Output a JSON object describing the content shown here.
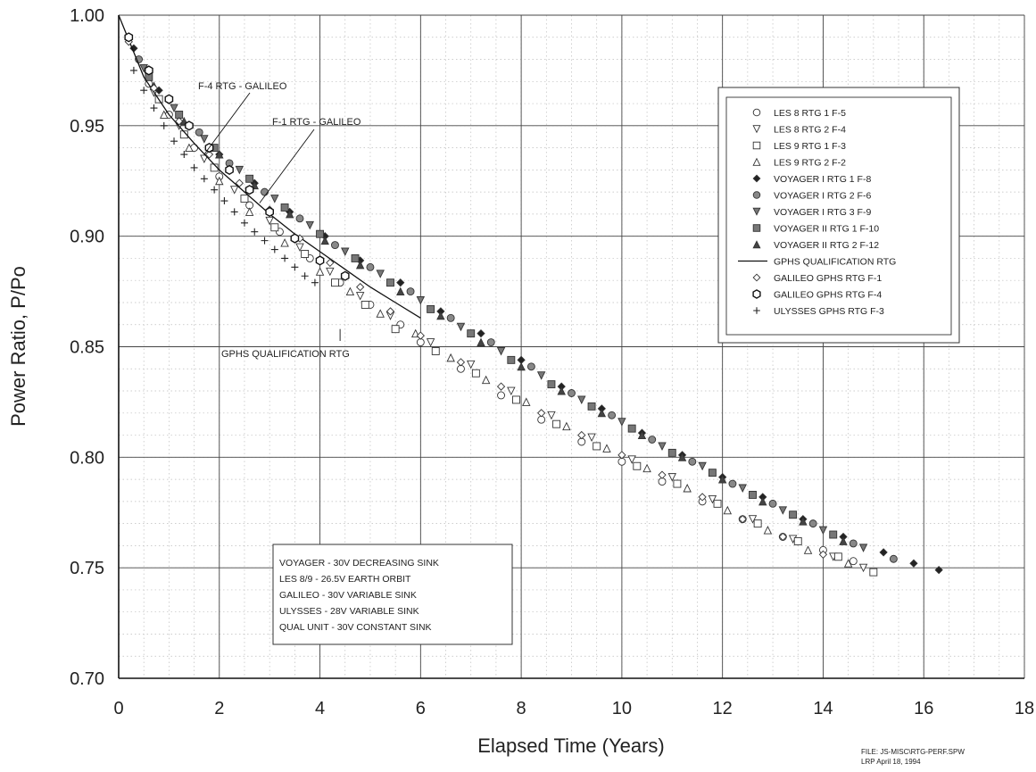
{
  "chart_data": {
    "type": "scatter",
    "xlabel": "Elapsed Time (Years)",
    "ylabel": "Power Ratio, P/Po",
    "xlim": [
      0,
      18
    ],
    "ylim": [
      0.7,
      1.0
    ],
    "xticks": [
      "0",
      "2",
      "4",
      "6",
      "8",
      "10",
      "12",
      "14",
      "16",
      "18"
    ],
    "yticks": [
      "0.70",
      "0.75",
      "0.80",
      "0.85",
      "0.90",
      "0.95",
      "1.00"
    ],
    "grid": "major solid, minor dotted",
    "legend_position": "top-right",
    "series": [
      {
        "name": "LES 8  RTG 1  F-5",
        "marker": "circle",
        "x": [
          0.6,
          1.0,
          1.5,
          2.0,
          2.6,
          3.2,
          3.8,
          4.4,
          5.0,
          5.6,
          6.0,
          6.8,
          7.6,
          8.4,
          9.2,
          10.0,
          10.8,
          11.6,
          12.4,
          13.2,
          14.0,
          14.6
        ],
        "y": [
          0.969,
          0.955,
          0.94,
          0.927,
          0.914,
          0.902,
          0.89,
          0.879,
          0.869,
          0.86,
          0.852,
          0.84,
          0.828,
          0.817,
          0.807,
          0.798,
          0.789,
          0.78,
          0.772,
          0.764,
          0.758,
          0.753
        ]
      },
      {
        "name": "LES 8  RTG 2  F-4",
        "marker": "triangle-down",
        "x": [
          0.7,
          1.2,
          1.7,
          2.3,
          3.0,
          3.6,
          4.2,
          4.8,
          5.4,
          6.2,
          7.0,
          7.8,
          8.6,
          9.4,
          10.2,
          11.0,
          11.8,
          12.6,
          13.4,
          14.2,
          14.8
        ],
        "y": [
          0.965,
          0.95,
          0.935,
          0.921,
          0.907,
          0.895,
          0.884,
          0.873,
          0.864,
          0.852,
          0.842,
          0.83,
          0.819,
          0.809,
          0.799,
          0.791,
          0.781,
          0.772,
          0.763,
          0.755,
          0.75
        ]
      },
      {
        "name": "LES 9  RTG 1  F-3",
        "marker": "square",
        "x": [
          0.8,
          1.3,
          1.9,
          2.5,
          3.1,
          3.7,
          4.3,
          4.9,
          5.5,
          6.3,
          7.1,
          7.9,
          8.7,
          9.5,
          10.3,
          11.1,
          11.9,
          12.7,
          13.5,
          14.3,
          15.0
        ],
        "y": [
          0.962,
          0.946,
          0.931,
          0.917,
          0.904,
          0.892,
          0.879,
          0.869,
          0.858,
          0.848,
          0.838,
          0.826,
          0.815,
          0.805,
          0.796,
          0.788,
          0.779,
          0.77,
          0.762,
          0.755,
          0.748
        ]
      },
      {
        "name": "LES 9  RTG 2  F-2",
        "marker": "triangle-up",
        "x": [
          0.9,
          1.4,
          2.0,
          2.6,
          3.3,
          4.0,
          4.6,
          5.2,
          5.9,
          6.6,
          7.3,
          8.1,
          8.9,
          9.7,
          10.5,
          11.3,
          12.1,
          12.9,
          13.7,
          14.5
        ],
        "y": [
          0.955,
          0.94,
          0.925,
          0.911,
          0.897,
          0.884,
          0.875,
          0.865,
          0.856,
          0.845,
          0.835,
          0.825,
          0.814,
          0.804,
          0.795,
          0.786,
          0.776,
          0.767,
          0.758,
          0.752
        ]
      },
      {
        "name": "VOYAGER I  RTG 1  F-8",
        "marker": "diamond-filled",
        "x": [
          0.3,
          0.8,
          1.4,
          2.0,
          2.7,
          3.4,
          4.1,
          4.8,
          5.6,
          6.4,
          7.2,
          8.0,
          8.8,
          9.6,
          10.4,
          11.2,
          12.0,
          12.8,
          13.6,
          14.4,
          15.2,
          15.8,
          16.3
        ],
        "y": [
          0.985,
          0.966,
          0.95,
          0.937,
          0.924,
          0.911,
          0.9,
          0.889,
          0.879,
          0.866,
          0.856,
          0.844,
          0.832,
          0.822,
          0.811,
          0.801,
          0.791,
          0.782,
          0.772,
          0.764,
          0.757,
          0.752,
          0.749
        ]
      },
      {
        "name": "VOYAGER I  RTG 2  F-6",
        "marker": "circle-hatched",
        "x": [
          0.4,
          1.0,
          1.6,
          2.2,
          2.9,
          3.6,
          4.3,
          5.0,
          5.8,
          6.6,
          7.4,
          8.2,
          9.0,
          9.8,
          10.6,
          11.4,
          12.2,
          13.0,
          13.8,
          14.6,
          15.4
        ],
        "y": [
          0.98,
          0.962,
          0.947,
          0.933,
          0.92,
          0.908,
          0.896,
          0.886,
          0.875,
          0.863,
          0.852,
          0.841,
          0.829,
          0.819,
          0.808,
          0.798,
          0.788,
          0.779,
          0.77,
          0.761,
          0.754
        ]
      },
      {
        "name": "VOYAGER I  RTG 3  F-9",
        "marker": "triangle-down-hatched",
        "x": [
          0.5,
          1.1,
          1.7,
          2.4,
          3.1,
          3.8,
          4.5,
          5.2,
          6.0,
          6.8,
          7.6,
          8.4,
          9.2,
          10.0,
          10.8,
          11.6,
          12.4,
          13.2,
          14.0,
          14.8
        ],
        "y": [
          0.976,
          0.958,
          0.944,
          0.93,
          0.917,
          0.905,
          0.893,
          0.883,
          0.871,
          0.859,
          0.848,
          0.837,
          0.826,
          0.816,
          0.805,
          0.796,
          0.786,
          0.776,
          0.767,
          0.759
        ]
      },
      {
        "name": "VOYAGER II  RTG 1  F-10",
        "marker": "square-hatched",
        "x": [
          0.6,
          1.2,
          1.9,
          2.6,
          3.3,
          4.0,
          4.7,
          5.4,
          6.2,
          7.0,
          7.8,
          8.6,
          9.4,
          10.2,
          11.0,
          11.8,
          12.6,
          13.4,
          14.2
        ],
        "y": [
          0.972,
          0.955,
          0.94,
          0.926,
          0.913,
          0.901,
          0.89,
          0.879,
          0.867,
          0.856,
          0.844,
          0.833,
          0.823,
          0.813,
          0.802,
          0.793,
          0.783,
          0.774,
          0.765
        ]
      },
      {
        "name": "VOYAGER II  RTG 2  F-12",
        "marker": "triangle-up-filled",
        "x": [
          0.7,
          1.3,
          2.0,
          2.7,
          3.4,
          4.1,
          4.8,
          5.6,
          6.4,
          7.2,
          8.0,
          8.8,
          9.6,
          10.4,
          11.2,
          12.0,
          12.8,
          13.6,
          14.4
        ],
        "y": [
          0.968,
          0.952,
          0.937,
          0.923,
          0.91,
          0.898,
          0.887,
          0.875,
          0.864,
          0.852,
          0.841,
          0.83,
          0.82,
          0.81,
          0.8,
          0.79,
          0.78,
          0.771,
          0.762
        ]
      },
      {
        "name": "GPHS QUALIFICATION RTG",
        "marker": "line",
        "x": [
          0,
          0.5,
          1,
          1.5,
          2,
          2.5,
          3,
          3.5,
          4,
          4.5,
          5,
          5.5,
          6
        ],
        "y": [
          1.0,
          0.972,
          0.955,
          0.942,
          0.93,
          0.92,
          0.91,
          0.901,
          0.893,
          0.885,
          0.877,
          0.87,
          0.863
        ]
      },
      {
        "name": "GALILEO GPHS RTG F-1",
        "marker": "diamond-open",
        "x": [
          0.2,
          0.7,
          1.2,
          1.8,
          2.4,
          3.0,
          3.6,
          4.2,
          4.8,
          5.4,
          6.0,
          6.8,
          7.6,
          8.4,
          9.2,
          10.0,
          10.8,
          11.6,
          12.4,
          13.2,
          14.0
        ],
        "y": [
          0.988,
          0.967,
          0.952,
          0.937,
          0.924,
          0.912,
          0.899,
          0.888,
          0.877,
          0.866,
          0.855,
          0.843,
          0.832,
          0.82,
          0.81,
          0.801,
          0.792,
          0.782,
          0.772,
          0.764,
          0.756
        ]
      },
      {
        "name": "GALILEO GPHS RTG F-4",
        "marker": "hexagon-open",
        "x": [
          0.2,
          0.6,
          1.0,
          1.4,
          1.8,
          2.2,
          2.6,
          3.0,
          3.5,
          4.0,
          4.5
        ],
        "y": [
          0.99,
          0.975,
          0.962,
          0.95,
          0.94,
          0.93,
          0.921,
          0.911,
          0.899,
          0.889,
          0.882
        ]
      },
      {
        "name": "ULYSSES GPHS RTG F-3",
        "marker": "plus",
        "x": [
          0.3,
          0.5,
          0.7,
          0.9,
          1.1,
          1.3,
          1.5,
          1.7,
          1.9,
          2.1,
          2.3,
          2.5,
          2.7,
          2.9,
          3.1,
          3.3,
          3.5,
          3.7,
          3.9
        ],
        "y": [
          0.975,
          0.966,
          0.958,
          0.95,
          0.943,
          0.937,
          0.931,
          0.926,
          0.921,
          0.916,
          0.911,
          0.906,
          0.902,
          0.898,
          0.894,
          0.89,
          0.886,
          0.882,
          0.879
        ]
      }
    ],
    "annotations": [
      {
        "text": "F-4 RTG - GALILEO",
        "x": 1.7,
        "y": 0.937
      },
      {
        "text": "F-1 RTG - GALILEO",
        "x": 2.8,
        "y": 0.915
      },
      {
        "text": "GPHS QUALIFICATION RTG",
        "x": 4.4,
        "y": 0.858
      }
    ],
    "note_box_lines": [
      "VOYAGER - 30V DECREASING SINK",
      "LES 8/9 - 26.5V EARTH ORBIT",
      "GALILEO - 30V VARIABLE SINK",
      "ULYSSES - 28V VARIABLE SINK",
      "QUAL UNIT - 30V CONSTANT SINK"
    ],
    "footer": {
      "file": "FILE: JS-MISC\\RTG-PERF.SPW",
      "author": "LRP  April 18, 1994"
    }
  }
}
